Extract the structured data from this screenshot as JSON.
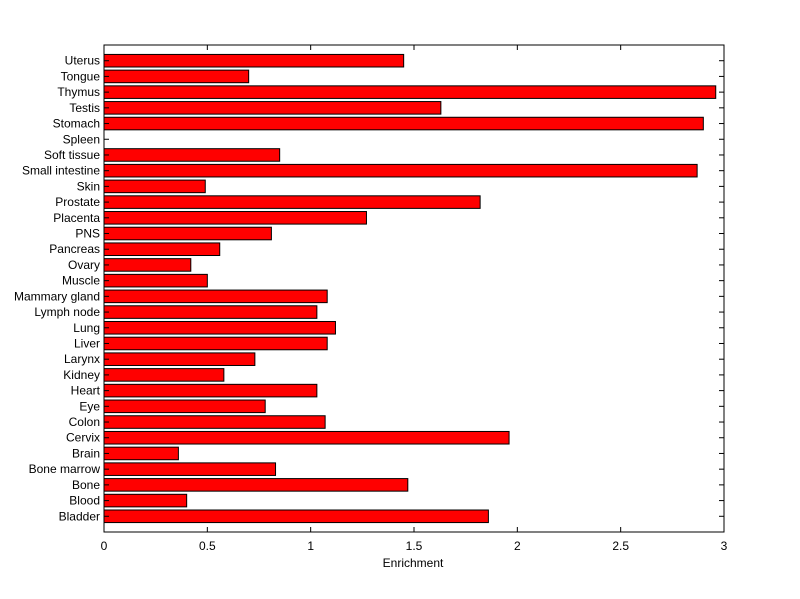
{
  "chart_data": {
    "type": "bar",
    "orientation": "horizontal",
    "categories": [
      "Uterus",
      "Tongue",
      "Thymus",
      "Testis",
      "Stomach",
      "Spleen",
      "Soft tissue",
      "Small intestine",
      "Skin",
      "Prostate",
      "Placenta",
      "PNS",
      "Pancreas",
      "Ovary",
      "Muscle",
      "Mammary gland",
      "Lymph node",
      "Lung",
      "Liver",
      "Larynx",
      "Kidney",
      "Heart",
      "Eye",
      "Colon",
      "Cervix",
      "Brain",
      "Bone marrow",
      "Bone",
      "Blood",
      "Bladder"
    ],
    "values": [
      1.45,
      0.7,
      2.96,
      1.63,
      2.9,
      0.0,
      0.85,
      2.87,
      0.49,
      1.82,
      1.27,
      0.81,
      0.56,
      0.42,
      0.5,
      1.08,
      1.03,
      1.12,
      1.08,
      0.73,
      0.58,
      1.03,
      0.78,
      1.07,
      1.96,
      0.36,
      0.83,
      1.47,
      0.4,
      1.86
    ],
    "xlabel": "Enrichment",
    "xlim": [
      0,
      3
    ],
    "xticks": [
      "0",
      "0.5",
      "1",
      "1.5",
      "2",
      "2.5",
      "3"
    ],
    "bar_color": "#ff0000",
    "grid": false
  }
}
